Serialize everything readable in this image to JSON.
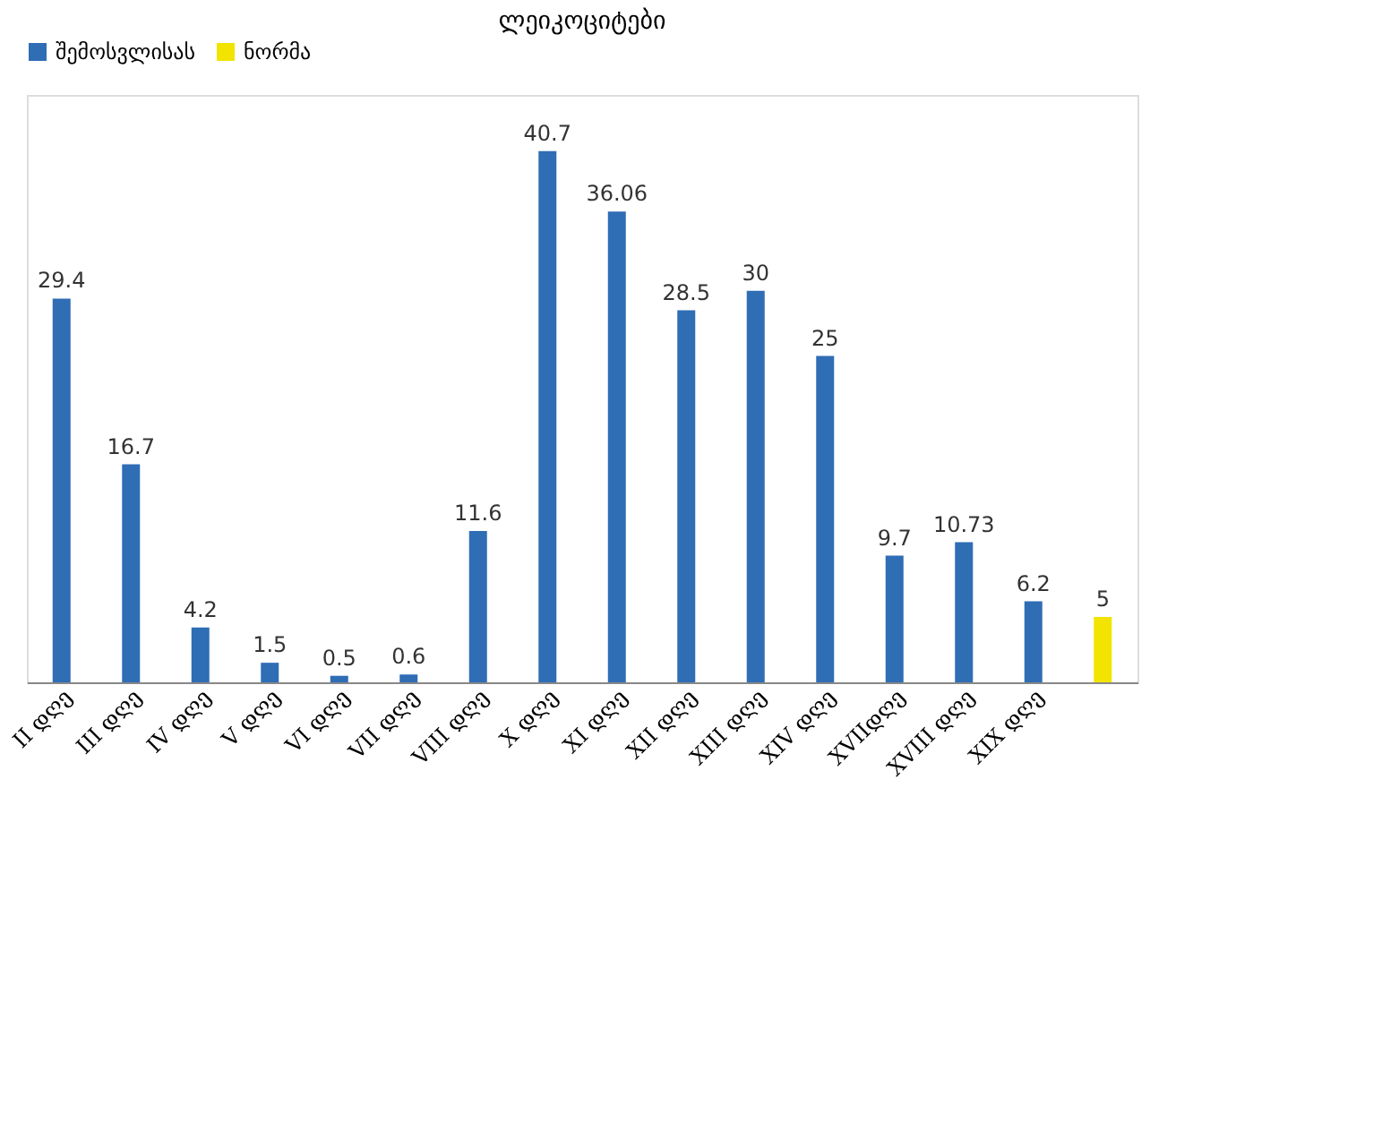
{
  "chart_data": {
    "type": "bar",
    "title": "ლეიკოციტები",
    "categories": [
      "II დღე",
      "III დღე",
      "IV დღე",
      "V დღე",
      "VI დღე",
      "VII დღე",
      "VIII დღე",
      "X დღე",
      "XI დღე",
      "XII დღე",
      "XIII დღე",
      "XIV დღე",
      "XVIIდღე",
      "XVIII დღე",
      "XIX დღე",
      null
    ],
    "series": [
      {
        "name": "შემოსვლისას",
        "color": "#2f6db5",
        "values": [
          29.4,
          16.7,
          4.2,
          1.5,
          0.5,
          0.6,
          11.6,
          40.7,
          36.06,
          28.5,
          30,
          25,
          9.7,
          10.73,
          6.2,
          null
        ]
      },
      {
        "name": "ნორმა",
        "color": "#f2e400",
        "values": [
          null,
          null,
          null,
          null,
          null,
          null,
          null,
          null,
          null,
          null,
          null,
          null,
          null,
          null,
          null,
          5
        ]
      }
    ],
    "data_labels": true,
    "legend": "top",
    "grid": false,
    "tick_labels": "x"
  }
}
